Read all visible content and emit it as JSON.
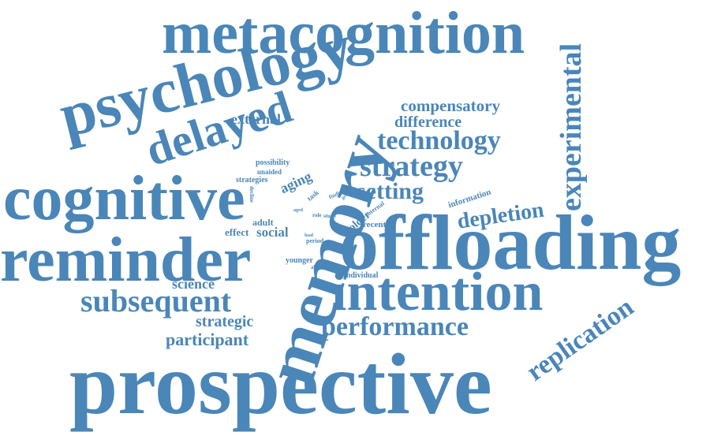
{
  "color": "#4a86b8",
  "words": {
    "metacognition": "metacognition",
    "psychology": "psychology",
    "memory": "memory",
    "delayed": "delayed",
    "cognitive": "cognitive",
    "reminder": "reminder",
    "offloading": "offloading",
    "intention": "intention",
    "prospective": "prospective",
    "experimental": "experimental",
    "replication": "replication",
    "compensatory": "compensatory",
    "difference": "difference",
    "technology": "technology",
    "strategy": "strategy",
    "setting": "setting",
    "depletion": "depletion",
    "external": "external",
    "subsequent": "subsequent",
    "performance": "performance",
    "participant": "participant",
    "strategic": "strategic",
    "science": "science",
    "social": "social",
    "effect": "effect",
    "adult": "adult",
    "aging": "aging",
    "possibility": "possibility",
    "unaided": "unaided",
    "strategies": "strategies",
    "information": "information",
    "older": "older",
    "recent": "recent",
    "younger": "younger",
    "individual": "individual",
    "task": "task",
    "finding": "finding",
    "group": "group",
    "internal": "internal",
    "decline": "decline",
    "aged": "aged",
    "role": "role",
    "study": "study",
    "period": "period",
    "ability": "ability",
    "load": "load"
  }
}
